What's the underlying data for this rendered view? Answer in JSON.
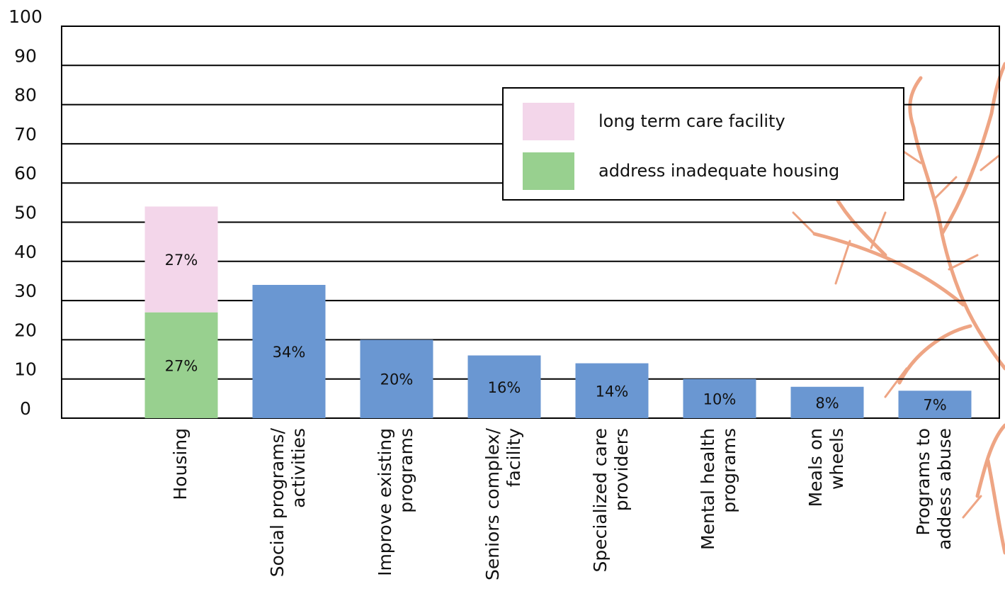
{
  "chart_data": {
    "type": "stacked-bar",
    "categories": [
      [
        "Housing"
      ],
      [
        "Social programs/",
        "activities"
      ],
      [
        "Improve existing",
        "programs"
      ],
      [
        "Seniors complex/",
        "facility"
      ],
      [
        "Specialized care",
        "providers"
      ],
      [
        "Mental health",
        "programs"
      ],
      [
        "Meals on",
        "wheels"
      ],
      [
        "Programs to",
        "addess abuse"
      ]
    ],
    "series": [
      {
        "name": "address inadequate housing",
        "color": "#98d08f",
        "values": [
          27,
          null,
          null,
          null,
          null,
          null,
          null,
          null
        ],
        "value_labels": [
          "27%",
          null,
          null,
          null,
          null,
          null,
          null,
          null
        ]
      },
      {
        "name": "long term care facility",
        "color": "#f3d6ea",
        "values": [
          27,
          null,
          null,
          null,
          null,
          null,
          null,
          null
        ],
        "value_labels": [
          "27%",
          null,
          null,
          null,
          null,
          null,
          null,
          null
        ]
      },
      {
        "color": "#6a97d2",
        "values": [
          null,
          34,
          20,
          16,
          14,
          10,
          8,
          7
        ],
        "value_labels": [
          null,
          "34%",
          "20%",
          "16%",
          "14%",
          "10%",
          "8%",
          "7%"
        ]
      }
    ],
    "ylim": [
      0,
      100
    ],
    "yticks": [
      0,
      10,
      20,
      30,
      40,
      50,
      60,
      70,
      80,
      90,
      100
    ],
    "grid": true,
    "legend": "top-right"
  }
}
